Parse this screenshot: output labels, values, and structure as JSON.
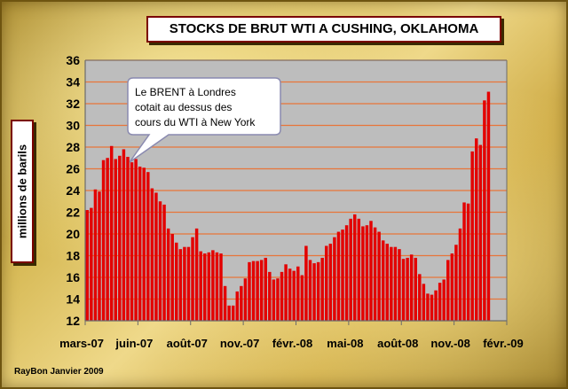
{
  "chart_data": {
    "type": "bar",
    "title": "STOCKS DE BRUT WTI  A CUSHING, OKLAHOMA",
    "ylabel": "millions de barils",
    "xlabel": "",
    "ylim": [
      12,
      36
    ],
    "y_ticks": [
      12,
      14,
      16,
      18,
      20,
      22,
      24,
      26,
      28,
      30,
      32,
      34,
      36
    ],
    "x_tick_labels": [
      "mars-07",
      "juin-07",
      "août-07",
      "nov.-07",
      "févr.-08",
      "mai-08",
      "août-08",
      "nov.-08",
      "févr.-09"
    ],
    "n_slots": 104,
    "grid": true,
    "bar_color": "#e30000",
    "plot_bg": "#bdbdbd",
    "grid_color": "#e8753a",
    "values": [
      22.2,
      22.4,
      24.1,
      23.9,
      26.8,
      27.0,
      28.1,
      26.9,
      27.2,
      27.8,
      27.1,
      26.6,
      26.9,
      26.2,
      26.1,
      25.7,
      24.2,
      23.8,
      23.0,
      22.7,
      20.5,
      20.0,
      19.2,
      18.6,
      18.8,
      18.8,
      19.7,
      20.5,
      18.4,
      18.2,
      18.3,
      18.5,
      18.3,
      18.2,
      15.2,
      13.4,
      13.4,
      14.7,
      15.2,
      15.9,
      17.4,
      17.5,
      17.5,
      17.6,
      17.8,
      16.5,
      15.8,
      15.9,
      16.5,
      17.2,
      16.8,
      16.6,
      17.0,
      16.2,
      18.9,
      17.6,
      17.3,
      17.4,
      17.8,
      18.9,
      19.1,
      19.7,
      20.2,
      20.4,
      20.8,
      21.4,
      21.8,
      21.4,
      20.7,
      20.8,
      21.2,
      20.6,
      20.2,
      19.4,
      19.1,
      18.8,
      18.8,
      18.6,
      17.7,
      17.8,
      18.1,
      17.8,
      16.3,
      15.4,
      14.5,
      14.4,
      14.8,
      15.5,
      15.8,
      17.6,
      18.2,
      19.0,
      20.5,
      22.9,
      22.8,
      27.6,
      28.8,
      28.2,
      32.3,
      33.1
    ],
    "annotation": "Le BRENT à Londres cotait au dessus des cours du WTI à New York"
  },
  "callout_lines": [
    "Le BRENT à Londres",
    "cotait au dessus des",
    "cours du WTI à New York"
  ],
  "credit": "RayBon Janvier 2009"
}
